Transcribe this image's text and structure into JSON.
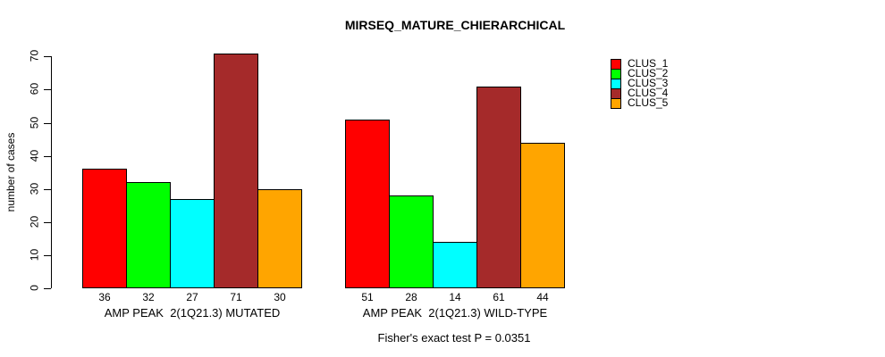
{
  "title": "MIRSEQ_MATURE_CHIERARCHICAL",
  "chart_data": {
    "type": "bar",
    "title": "MIRSEQ_MATURE_CHIERARCHICAL",
    "ylabel": "number of cases",
    "xlabel": "",
    "ylim": [
      0,
      70
    ],
    "yticks": [
      0,
      10,
      20,
      30,
      40,
      50,
      60,
      70
    ],
    "grid": false,
    "legend_position": "right",
    "categories": [
      "AMP PEAK  2(1Q21.3) MUTATED",
      "AMP PEAK  2(1Q21.3) WILD-TYPE"
    ],
    "series": [
      {
        "name": "CLUS_1",
        "color": "#FF0000",
        "values": [
          36,
          51
        ]
      },
      {
        "name": "CLUS_2",
        "color": "#00FF00",
        "values": [
          32,
          28
        ]
      },
      {
        "name": "CLUS_3",
        "color": "#00FFFF",
        "values": [
          27,
          14
        ]
      },
      {
        "name": "CLUS_4",
        "color": "#A52A2A",
        "values": [
          71,
          61
        ]
      },
      {
        "name": "CLUS_5",
        "color": "#FFA500",
        "values": [
          30,
          44
        ]
      }
    ],
    "bar_value_labels": [
      [
        36,
        32,
        27,
        71,
        30
      ],
      [
        51,
        28,
        14,
        61,
        44
      ]
    ],
    "annotation": "Fisher's exact test P = 0.0351"
  }
}
